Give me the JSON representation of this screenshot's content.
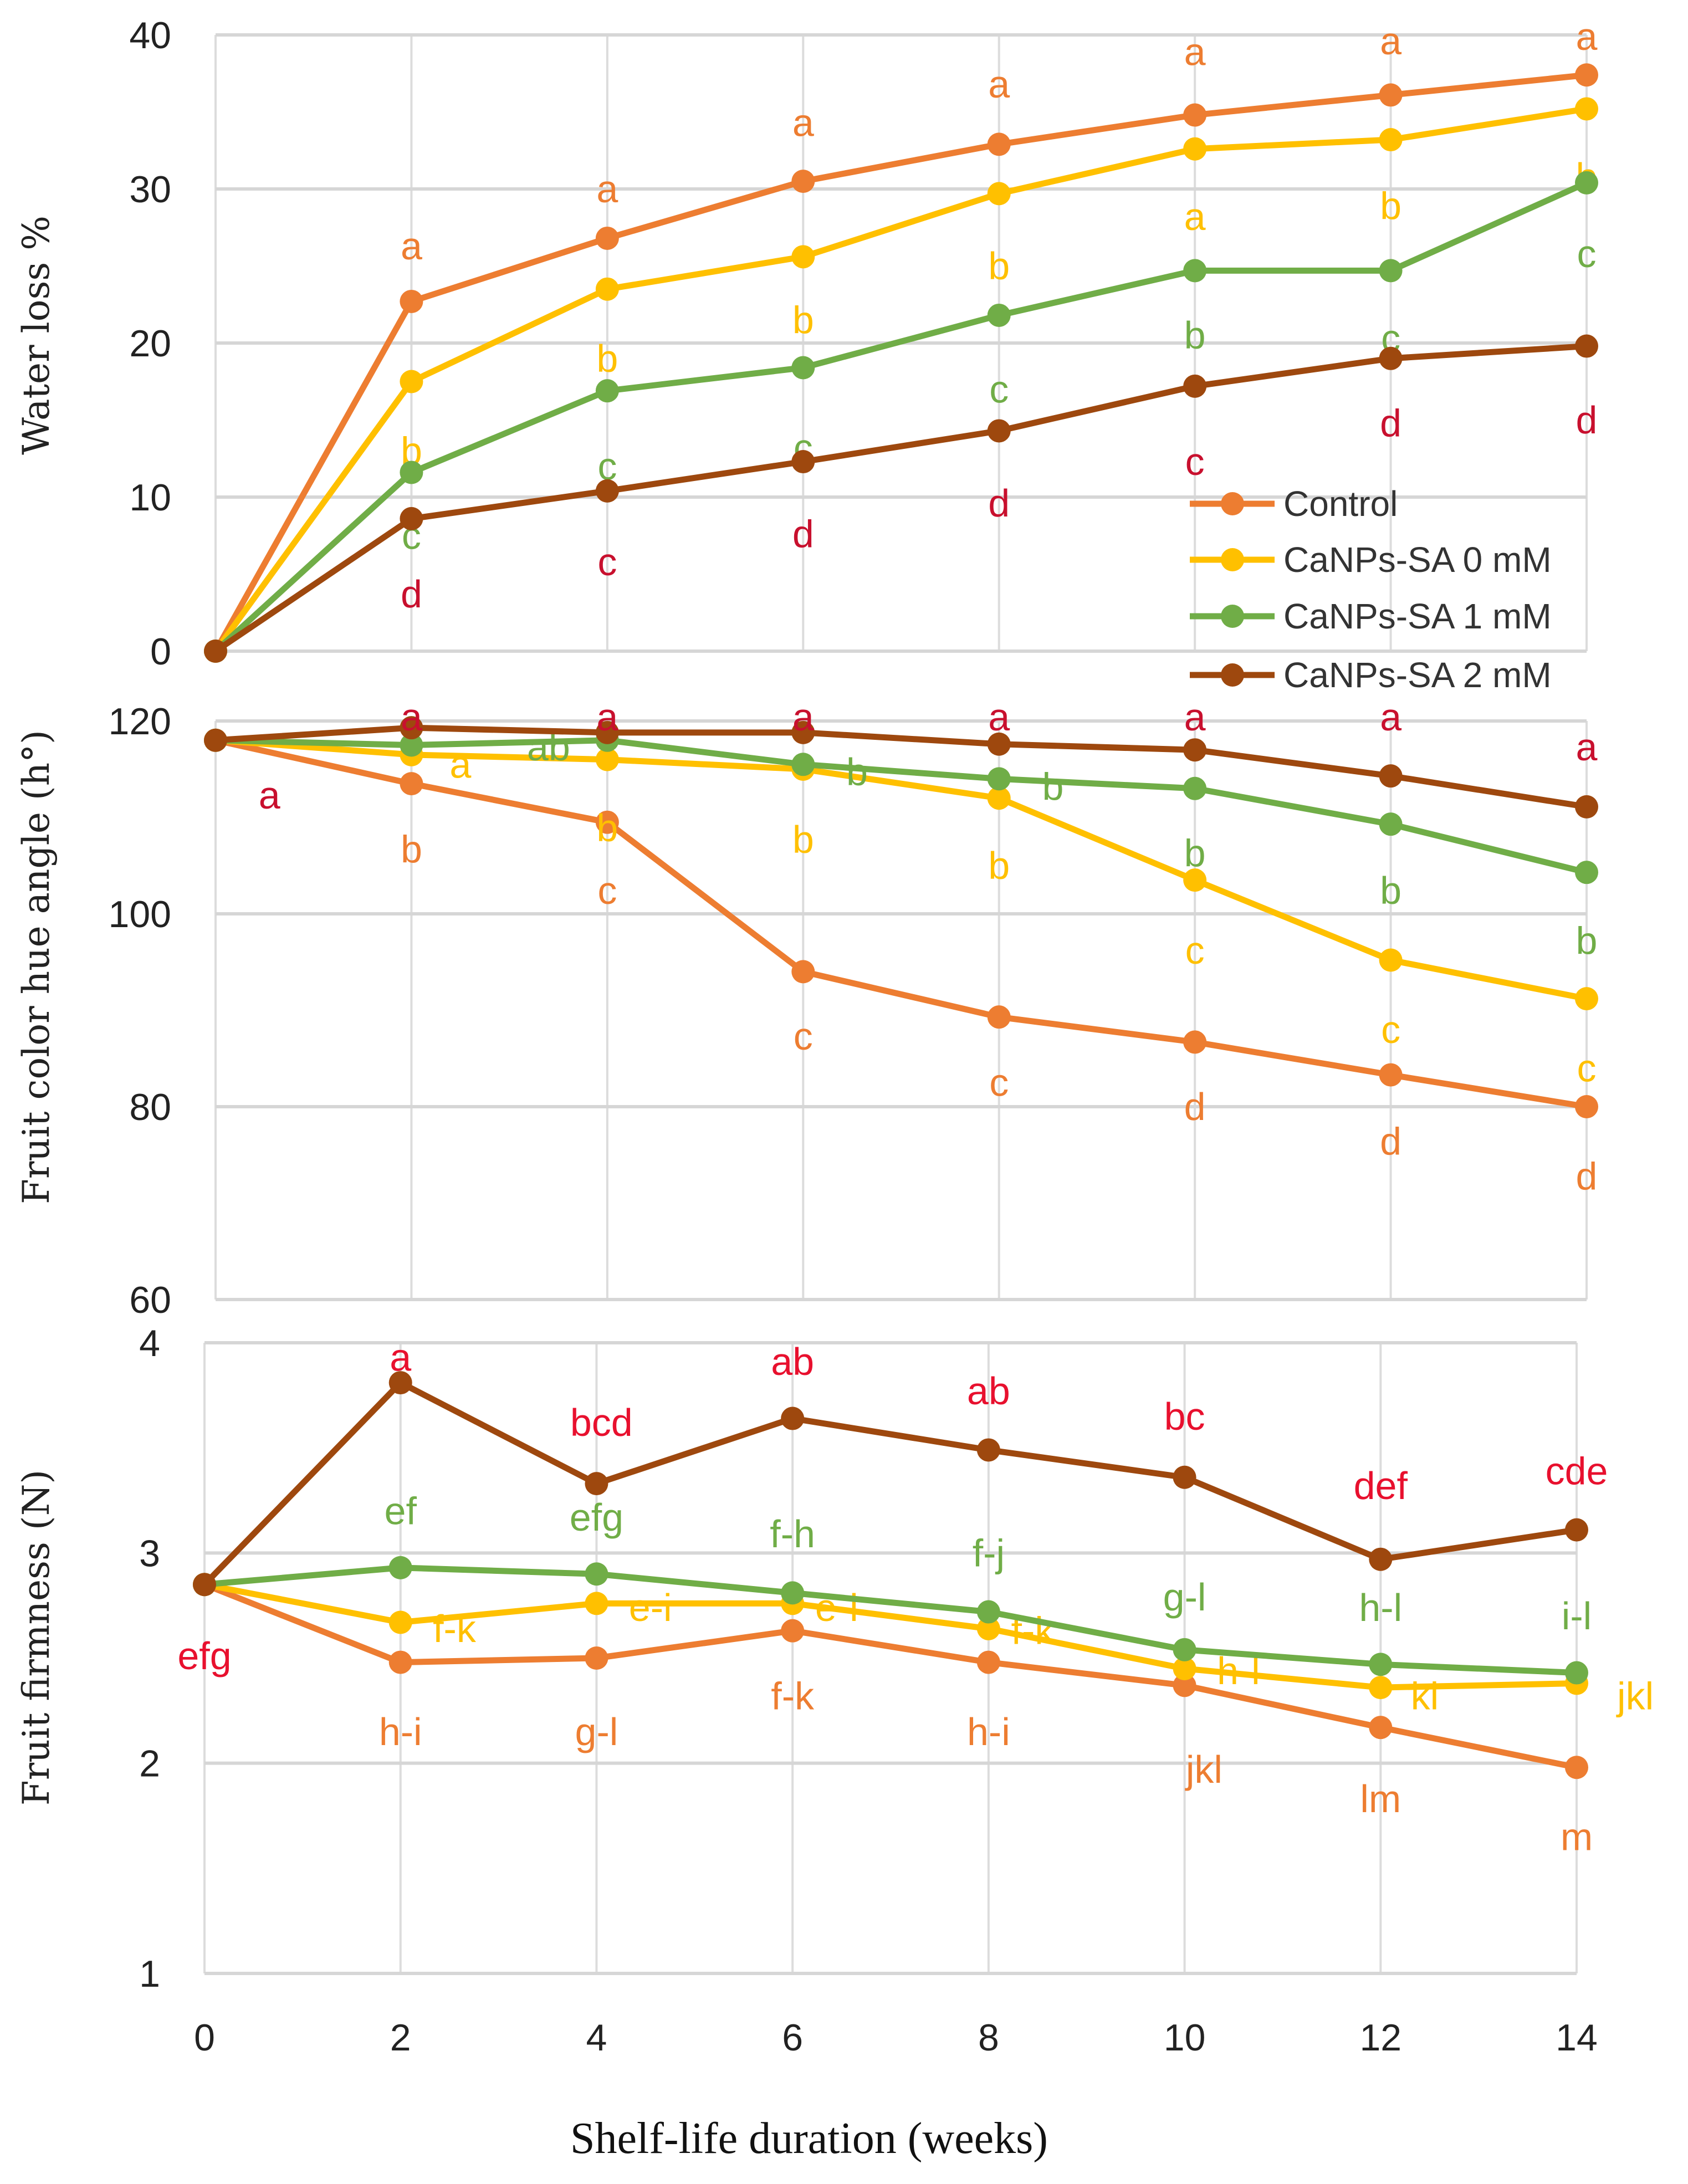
{
  "chart_data": [
    {
      "type": "line",
      "ylabel": "Water loss %",
      "ylim": [
        0,
        40
      ],
      "yticks": [
        0,
        10,
        20,
        30,
        40
      ],
      "x": [
        0,
        2,
        4,
        6,
        8,
        10,
        12,
        14
      ],
      "grid": true,
      "legend_position": "bottom-right",
      "series": [
        {
          "name": "Control",
          "color": "#ED7D31",
          "values": [
            0,
            22.7,
            26.8,
            30.5,
            32.9,
            34.8,
            36.1,
            37.4
          ],
          "letters": [
            "",
            "a",
            "a",
            "a",
            "a",
            "a",
            "a",
            "a"
          ],
          "letter_color": "#ED7D31"
        },
        {
          "name": "CaNPs-SA 0 mM",
          "color": "#FFC000",
          "values": [
            0,
            17.5,
            23.5,
            25.6,
            29.7,
            32.6,
            33.2,
            35.2
          ],
          "letters": [
            "",
            "b",
            "b",
            "b",
            "b",
            "a",
            "b",
            "b"
          ],
          "letter_color": "#FFC000"
        },
        {
          "name": "CaNPs-SA 1 mM",
          "color": "#70AD47",
          "values": [
            0,
            11.6,
            16.9,
            18.4,
            21.8,
            24.7,
            24.7,
            30.4
          ],
          "letters": [
            "",
            "c",
            "c",
            "c",
            "c",
            "b",
            "c",
            "c"
          ],
          "letter_color": "#70AD47"
        },
        {
          "name": "CaNPs-SA 2 mM",
          "color": "#9E480E",
          "values": [
            0,
            8.6,
            10.4,
            12.3,
            14.3,
            17.2,
            19.0,
            19.8
          ],
          "letters": [
            "",
            "d",
            "c",
            "d",
            "d",
            "c",
            "d",
            "d"
          ],
          "letter_color": "#C8102E"
        }
      ]
    },
    {
      "type": "line",
      "ylabel": "Fruit color hue angle (h°)",
      "ylim": [
        60,
        120
      ],
      "yticks": [
        60,
        80,
        100,
        120
      ],
      "x": [
        0,
        2,
        4,
        6,
        8,
        10,
        12,
        14
      ],
      "grid": true,
      "series": [
        {
          "name": "Control",
          "color": "#ED7D31",
          "values": [
            118,
            113.5,
            109.5,
            94,
            89.3,
            86.7,
            83.3,
            80
          ],
          "letters": [
            "",
            "b",
            "c",
            "c",
            "c",
            "d",
            "d",
            "d"
          ],
          "letter_color": "#ED7D31"
        },
        {
          "name": "CaNPs-SA 0 mM",
          "color": "#FFC000",
          "values": [
            118,
            116.5,
            116,
            115,
            112,
            103.5,
            95.2,
            91.2
          ],
          "letters": [
            "",
            "a",
            "b",
            "b",
            "b",
            "c",
            "c",
            "c"
          ],
          "letter_color": "#FFC000"
        },
        {
          "name": "CaNPs-SA 1 mM",
          "color": "#70AD47",
          "values": [
            118,
            117.5,
            118,
            115.5,
            114,
            113,
            109.3,
            104.3
          ],
          "letters": [
            "",
            "",
            "ab",
            "b",
            "b",
            "b",
            "b",
            "b"
          ],
          "letter_color": "#70AD47"
        },
        {
          "name": "CaNPs-SA 2 mM",
          "color": "#9E480E",
          "values": [
            118,
            119.3,
            118.8,
            118.8,
            117.6,
            117,
            114.3,
            111.1
          ],
          "letters": [
            "a",
            "a",
            "a",
            "a",
            "a",
            "a",
            "a",
            "a"
          ],
          "letter_color": "#C8102E"
        }
      ]
    },
    {
      "type": "line",
      "ylabel": "Fruit firmness (N)",
      "xlabel": "Shelf-life duration (weeks)",
      "ylim": [
        1,
        4
      ],
      "yticks": [
        1,
        2,
        3,
        4
      ],
      "x": [
        0,
        2,
        4,
        6,
        8,
        10,
        12,
        14
      ],
      "xticks": [
        "0",
        "2",
        "4",
        "6",
        "8",
        "10",
        "12",
        "14"
      ],
      "grid": true,
      "series": [
        {
          "name": "Control",
          "color": "#ED7D31",
          "values": [
            2.85,
            2.48,
            2.5,
            2.63,
            2.48,
            2.37,
            2.17,
            1.98
          ],
          "letters": [
            "",
            "h-i",
            "g-l",
            "f-k",
            "h-i",
            "jkl",
            "lm",
            "m"
          ],
          "letter_color": "#ED7D31"
        },
        {
          "name": "CaNPs-SA 0 mM",
          "color": "#FFC000",
          "values": [
            2.85,
            2.67,
            2.76,
            2.76,
            2.64,
            2.45,
            2.36,
            2.38
          ],
          "letters": [
            "",
            "f-k",
            "e-i",
            "e-i",
            "f-k",
            "h-l",
            "kl",
            "jkl"
          ],
          "letter_color": "#FFC000"
        },
        {
          "name": "CaNPs-SA 1 mM",
          "color": "#70AD47",
          "values": [
            2.85,
            2.93,
            2.9,
            2.81,
            2.72,
            2.54,
            2.47,
            2.43
          ],
          "letters": [
            "",
            "ef",
            "efg",
            "f-h",
            "f-j",
            "g-l",
            "h-l",
            "i-l"
          ],
          "letter_color": "#70AD47"
        },
        {
          "name": "CaNPs-SA 2 mM",
          "color": "#9E480E",
          "values": [
            2.85,
            3.81,
            3.33,
            3.64,
            3.49,
            3.36,
            2.97,
            3.11
          ],
          "letters": [
            "efg",
            "a",
            "bcd",
            "ab",
            "ab",
            "bc",
            "def",
            "cde"
          ],
          "letter_color": "#E8102E"
        }
      ]
    }
  ]
}
